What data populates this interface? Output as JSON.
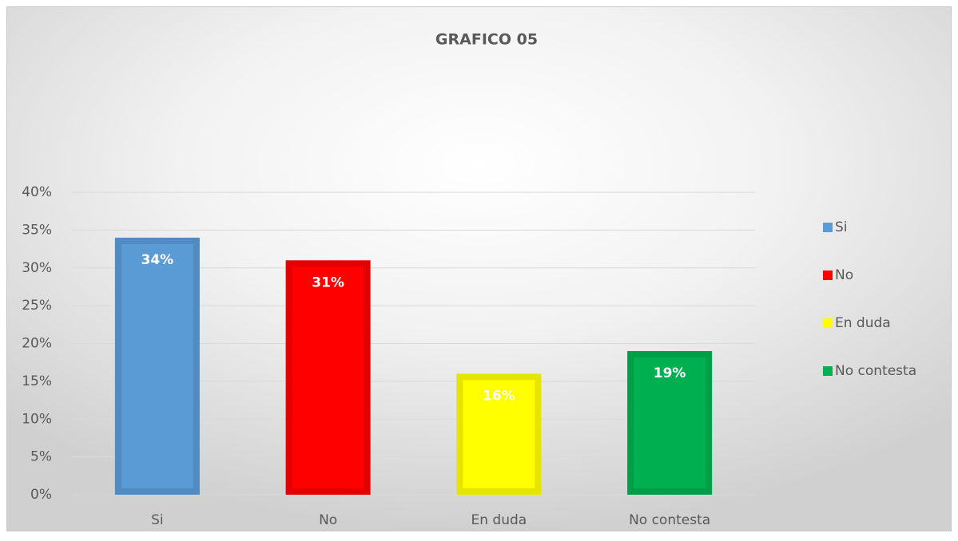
{
  "chart_data": {
    "type": "bar",
    "title": "GRAFICO 05",
    "categories": [
      "Si",
      "No",
      "En duda",
      "No contesta"
    ],
    "values": [
      34,
      31,
      16,
      19
    ],
    "value_labels": [
      "34%",
      "31%",
      "16%",
      "19%"
    ],
    "colors": [
      "#5b9bd5",
      "#ff0000",
      "#ffff00",
      "#00b050"
    ],
    "ylim": [
      0,
      40
    ],
    "yticks": [
      {
        "value": 0,
        "label": "0%"
      },
      {
        "value": 5,
        "label": "5%"
      },
      {
        "value": 10,
        "label": "10%"
      },
      {
        "value": 15,
        "label": "15%"
      },
      {
        "value": 20,
        "label": "20%"
      },
      {
        "value": 25,
        "label": "25%"
      },
      {
        "value": 30,
        "label": "30%"
      },
      {
        "value": 35,
        "label": "35%"
      },
      {
        "value": 40,
        "label": "40%"
      }
    ],
    "grid": true,
    "legend": "right"
  }
}
